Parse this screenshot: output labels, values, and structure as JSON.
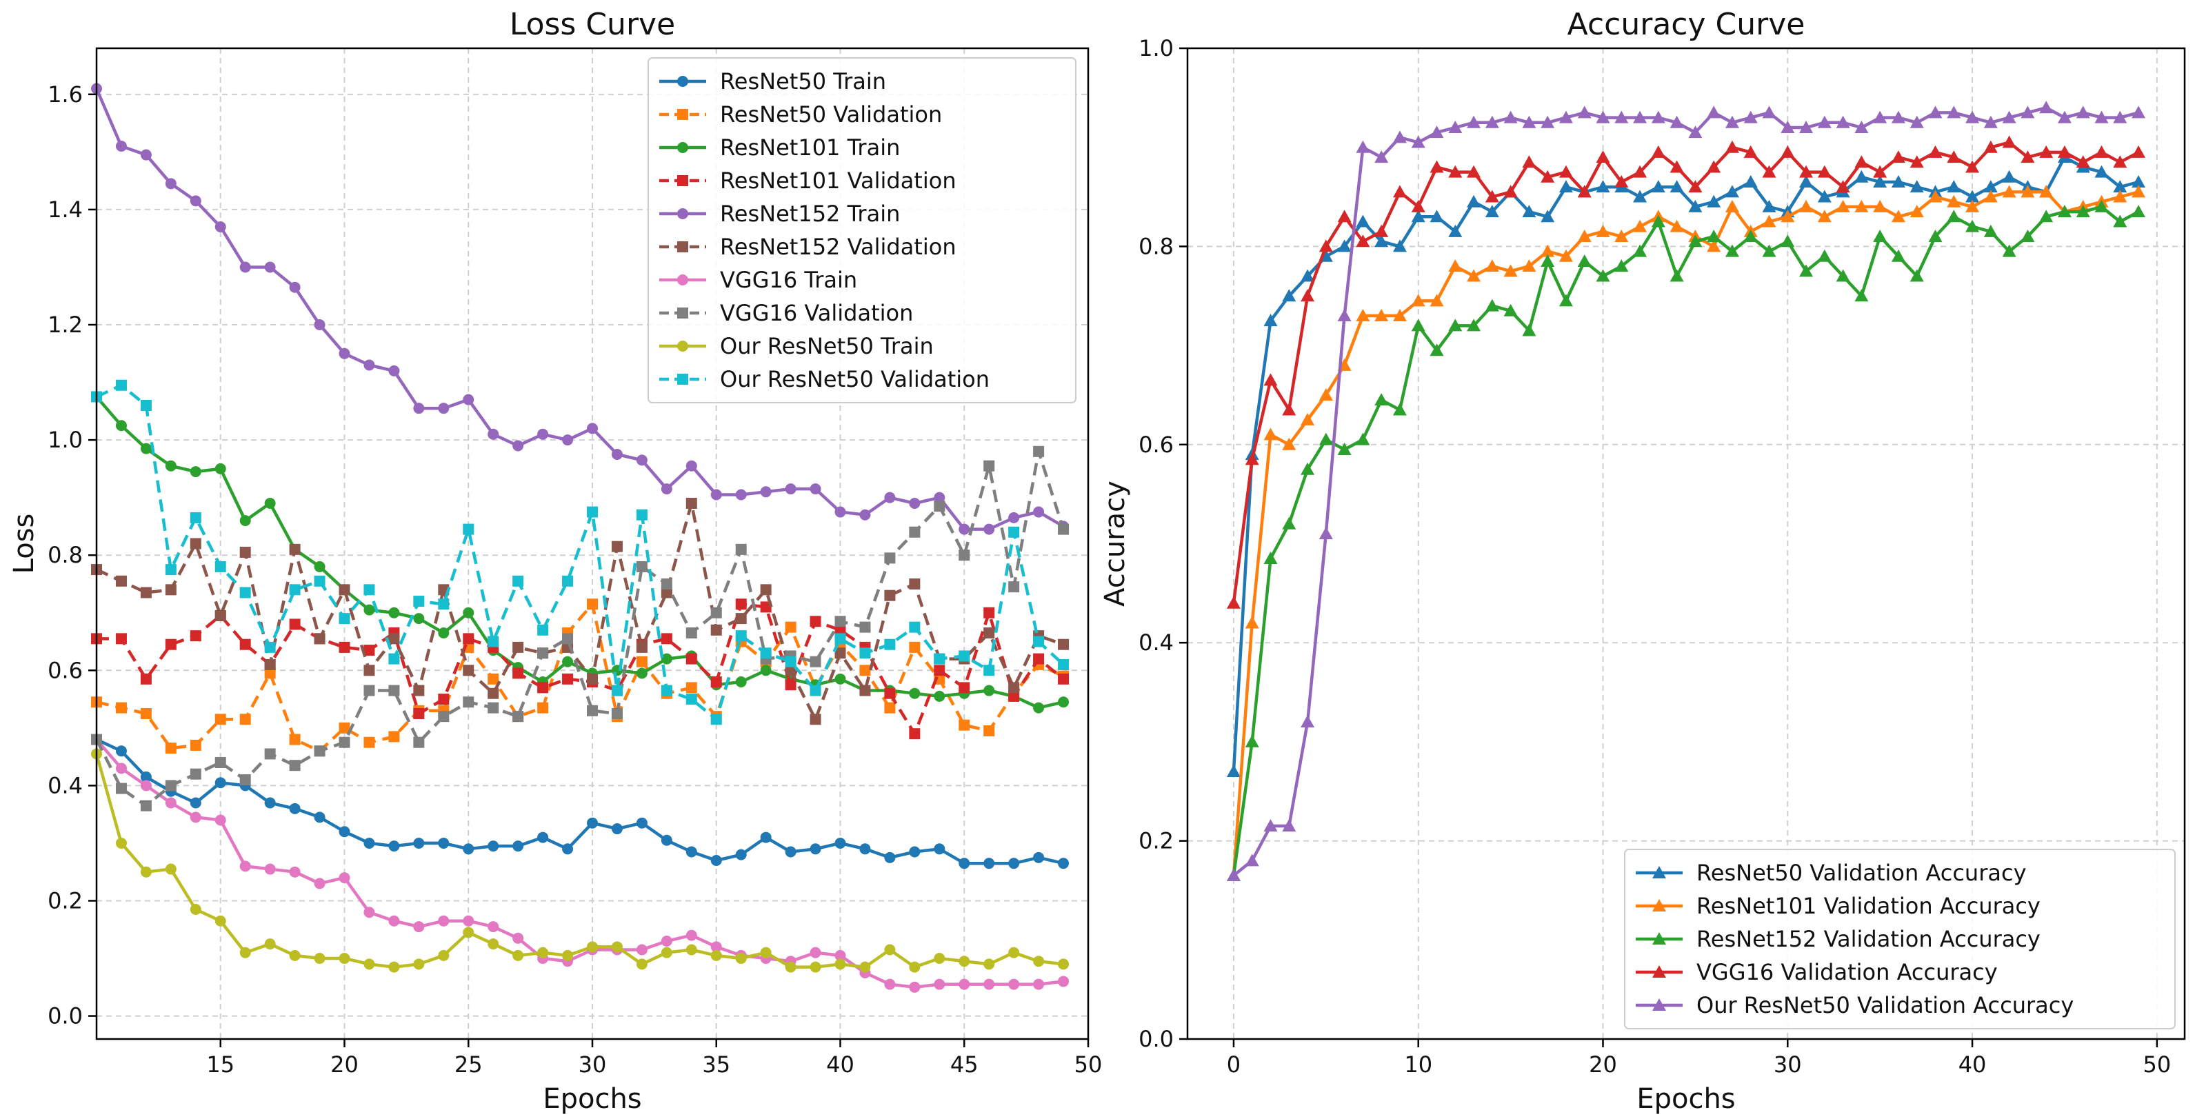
{
  "chart_data": [
    {
      "type": "line",
      "title": "Loss Curve",
      "xlabel": "Epochs",
      "ylabel": "Loss",
      "xlim": [
        10,
        50
      ],
      "ylim": [
        -0.04,
        1.68
      ],
      "xticks": [
        15,
        20,
        25,
        30,
        35,
        40,
        45,
        50
      ],
      "yticks": [
        0.0,
        0.2,
        0.4,
        0.6,
        0.8,
        1.0,
        1.2,
        1.4,
        1.6
      ],
      "ytick_labels": [
        "0.0",
        "0.2",
        "0.4",
        "0.6",
        "0.8",
        "1.0",
        "1.2",
        "1.4",
        "1.6"
      ],
      "grid": true,
      "legend_position": "top-right",
      "x": [
        10,
        11,
        12,
        13,
        14,
        15,
        16,
        17,
        18,
        19,
        20,
        21,
        22,
        23,
        24,
        25,
        26,
        27,
        28,
        29,
        30,
        31,
        32,
        33,
        34,
        35,
        36,
        37,
        38,
        39,
        40,
        41,
        42,
        43,
        44,
        45,
        46,
        47,
        48,
        49
      ],
      "series": [
        {
          "name": "ResNet50 Train",
          "color": "#1f77b4",
          "dash": false,
          "marker": "circle",
          "values": [
            0.48,
            0.46,
            0.415,
            0.39,
            0.37,
            0.405,
            0.4,
            0.37,
            0.36,
            0.345,
            0.32,
            0.3,
            0.295,
            0.3,
            0.3,
            0.29,
            0.295,
            0.295,
            0.31,
            0.29,
            0.335,
            0.325,
            0.335,
            0.305,
            0.285,
            0.27,
            0.28,
            0.31,
            0.285,
            0.29,
            0.3,
            0.29,
            0.275,
            0.285,
            0.29,
            0.265,
            0.265,
            0.265,
            0.275,
            0.265
          ]
        },
        {
          "name": "ResNet50 Validation",
          "color": "#ff7f0e",
          "dash": true,
          "marker": "square",
          "values": [
            0.545,
            0.535,
            0.525,
            0.465,
            0.47,
            0.515,
            0.515,
            0.595,
            0.48,
            0.46,
            0.5,
            0.475,
            0.485,
            0.53,
            0.53,
            0.64,
            0.585,
            0.52,
            0.535,
            0.665,
            0.715,
            0.52,
            0.615,
            0.56,
            0.57,
            0.52,
            0.65,
            0.615,
            0.675,
            0.57,
            0.645,
            0.6,
            0.535,
            0.64,
            0.585,
            0.505,
            0.495,
            0.56,
            0.61,
            0.59
          ]
        },
        {
          "name": "ResNet101 Train",
          "color": "#2ca02c",
          "dash": false,
          "marker": "circle",
          "values": [
            1.075,
            1.025,
            0.985,
            0.955,
            0.945,
            0.95,
            0.86,
            0.89,
            0.81,
            0.78,
            0.74,
            0.705,
            0.7,
            0.69,
            0.665,
            0.7,
            0.635,
            0.605,
            0.58,
            0.615,
            0.595,
            0.6,
            0.595,
            0.62,
            0.625,
            0.575,
            0.58,
            0.6,
            0.585,
            0.575,
            0.585,
            0.565,
            0.565,
            0.56,
            0.555,
            0.56,
            0.565,
            0.555,
            0.535,
            0.545
          ]
        },
        {
          "name": "ResNet101 Validation",
          "color": "#d62728",
          "dash": true,
          "marker": "square",
          "values": [
            0.655,
            0.655,
            0.585,
            0.645,
            0.66,
            0.695,
            0.645,
            0.61,
            0.68,
            0.655,
            0.64,
            0.635,
            0.665,
            0.525,
            0.55,
            0.655,
            0.64,
            0.595,
            0.57,
            0.585,
            0.58,
            0.565,
            0.645,
            0.655,
            0.62,
            0.58,
            0.715,
            0.71,
            0.575,
            0.685,
            0.67,
            0.64,
            0.56,
            0.49,
            0.6,
            0.57,
            0.7,
            0.555,
            0.62,
            0.585
          ]
        },
        {
          "name": "ResNet152 Train",
          "color": "#9467bd",
          "dash": false,
          "marker": "circle",
          "values": [
            1.61,
            1.51,
            1.495,
            1.445,
            1.415,
            1.37,
            1.3,
            1.3,
            1.265,
            1.2,
            1.15,
            1.13,
            1.12,
            1.055,
            1.055,
            1.07,
            1.01,
            0.99,
            1.01,
            1.0,
            1.02,
            0.975,
            0.965,
            0.915,
            0.955,
            0.905,
            0.905,
            0.91,
            0.915,
            0.915,
            0.875,
            0.87,
            0.9,
            0.89,
            0.9,
            0.845,
            0.845,
            0.865,
            0.875,
            0.85
          ]
        },
        {
          "name": "ResNet152 Validation",
          "color": "#8c564b",
          "dash": true,
          "marker": "square",
          "values": [
            0.775,
            0.755,
            0.735,
            0.74,
            0.82,
            0.695,
            0.805,
            0.61,
            0.81,
            0.655,
            0.74,
            0.6,
            0.655,
            0.565,
            0.74,
            0.6,
            0.56,
            0.64,
            0.63,
            0.64,
            0.585,
            0.815,
            0.64,
            0.735,
            0.89,
            0.67,
            0.69,
            0.74,
            0.6,
            0.515,
            0.63,
            0.565,
            0.73,
            0.75,
            0.62,
            0.62,
            0.665,
            0.57,
            0.66,
            0.645
          ]
        },
        {
          "name": "VGG16 Train",
          "color": "#e377c2",
          "dash": false,
          "marker": "circle",
          "values": [
            0.48,
            0.43,
            0.4,
            0.37,
            0.345,
            0.34,
            0.26,
            0.255,
            0.25,
            0.23,
            0.24,
            0.18,
            0.165,
            0.155,
            0.165,
            0.165,
            0.155,
            0.135,
            0.1,
            0.095,
            0.115,
            0.115,
            0.115,
            0.13,
            0.14,
            0.12,
            0.105,
            0.1,
            0.095,
            0.11,
            0.105,
            0.075,
            0.055,
            0.05,
            0.055,
            0.055,
            0.055,
            0.055,
            0.055,
            0.06
          ]
        },
        {
          "name": "VGG16 Validation",
          "color": "#7f7f7f",
          "dash": true,
          "marker": "square",
          "values": [
            0.48,
            0.395,
            0.365,
            0.4,
            0.42,
            0.44,
            0.41,
            0.455,
            0.435,
            0.46,
            0.475,
            0.565,
            0.565,
            0.475,
            0.52,
            0.545,
            0.535,
            0.52,
            0.63,
            0.655,
            0.53,
            0.525,
            0.78,
            0.75,
            0.665,
            0.7,
            0.81,
            0.62,
            0.625,
            0.615,
            0.685,
            0.675,
            0.795,
            0.84,
            0.885,
            0.8,
            0.955,
            0.745,
            0.98,
            0.845
          ]
        },
        {
          "name": "Our ResNet50 Train",
          "color": "#bcbd22",
          "dash": false,
          "marker": "circle",
          "values": [
            0.455,
            0.3,
            0.25,
            0.255,
            0.185,
            0.165,
            0.11,
            0.125,
            0.105,
            0.1,
            0.1,
            0.09,
            0.085,
            0.09,
            0.105,
            0.145,
            0.125,
            0.105,
            0.11,
            0.105,
            0.12,
            0.12,
            0.09,
            0.11,
            0.115,
            0.105,
            0.1,
            0.11,
            0.085,
            0.085,
            0.09,
            0.085,
            0.115,
            0.085,
            0.1,
            0.095,
            0.09,
            0.11,
            0.095,
            0.09
          ]
        },
        {
          "name": "Our ResNet50 Validation",
          "color": "#17becf",
          "dash": true,
          "marker": "square",
          "values": [
            1.075,
            1.095,
            1.06,
            0.775,
            0.865,
            0.78,
            0.735,
            0.64,
            0.74,
            0.755,
            0.69,
            0.74,
            0.62,
            0.72,
            0.715,
            0.845,
            0.65,
            0.755,
            0.67,
            0.755,
            0.875,
            0.565,
            0.87,
            0.565,
            0.55,
            0.515,
            0.66,
            0.63,
            0.615,
            0.565,
            0.655,
            0.63,
            0.645,
            0.675,
            0.62,
            0.625,
            0.6,
            0.84,
            0.65,
            0.61
          ]
        }
      ]
    },
    {
      "type": "line",
      "title": "Accuracy Curve",
      "xlabel": "Epochs",
      "ylabel": "Accuracy",
      "xlim": [
        -2.5,
        51.5
      ],
      "ylim": [
        0.0,
        1.0
      ],
      "xticks": [
        0,
        10,
        20,
        30,
        40,
        50
      ],
      "yticks": [
        0.0,
        0.2,
        0.4,
        0.6,
        0.8,
        1.0
      ],
      "ytick_labels": [
        "0.0",
        "0.2",
        "0.4",
        "0.6",
        "0.8",
        "1.0"
      ],
      "grid": true,
      "legend_position": "bottom-right",
      "x": [
        0,
        1,
        2,
        3,
        4,
        5,
        6,
        7,
        8,
        9,
        10,
        11,
        12,
        13,
        14,
        15,
        16,
        17,
        18,
        19,
        20,
        21,
        22,
        23,
        24,
        25,
        26,
        27,
        28,
        29,
        30,
        31,
        32,
        33,
        34,
        35,
        36,
        37,
        38,
        39,
        40,
        41,
        42,
        43,
        44,
        45,
        46,
        47,
        48,
        49
      ],
      "series": [
        {
          "name": "ResNet50 Validation Accuracy",
          "color": "#1f77b4",
          "dash": false,
          "marker": "triangle",
          "values": [
            0.27,
            0.59,
            0.725,
            0.75,
            0.77,
            0.79,
            0.8,
            0.825,
            0.805,
            0.8,
            0.83,
            0.83,
            0.815,
            0.845,
            0.835,
            0.855,
            0.835,
            0.83,
            0.86,
            0.855,
            0.86,
            0.86,
            0.85,
            0.86,
            0.86,
            0.84,
            0.845,
            0.855,
            0.865,
            0.84,
            0.835,
            0.865,
            0.85,
            0.855,
            0.87,
            0.865,
            0.865,
            0.86,
            0.855,
            0.86,
            0.85,
            0.86,
            0.87,
            0.86,
            0.855,
            0.89,
            0.88,
            0.875,
            0.86,
            0.865
          ]
        },
        {
          "name": "ResNet101 Validation Accuracy",
          "color": "#ff7f0e",
          "dash": false,
          "marker": "triangle",
          "values": [
            0.165,
            0.42,
            0.61,
            0.6,
            0.625,
            0.65,
            0.68,
            0.73,
            0.73,
            0.73,
            0.745,
            0.745,
            0.78,
            0.77,
            0.78,
            0.775,
            0.78,
            0.795,
            0.79,
            0.81,
            0.815,
            0.81,
            0.82,
            0.83,
            0.82,
            0.81,
            0.8,
            0.84,
            0.815,
            0.825,
            0.83,
            0.84,
            0.83,
            0.84,
            0.84,
            0.84,
            0.83,
            0.835,
            0.85,
            0.845,
            0.84,
            0.85,
            0.855,
            0.855,
            0.855,
            0.835,
            0.84,
            0.845,
            0.85,
            0.855
          ]
        },
        {
          "name": "ResNet152 Validation Accuracy",
          "color": "#2ca02c",
          "dash": false,
          "marker": "triangle",
          "values": [
            0.165,
            0.3,
            0.485,
            0.52,
            0.575,
            0.605,
            0.595,
            0.605,
            0.645,
            0.635,
            0.72,
            0.695,
            0.72,
            0.72,
            0.74,
            0.735,
            0.715,
            0.785,
            0.745,
            0.785,
            0.77,
            0.78,
            0.795,
            0.825,
            0.77,
            0.805,
            0.81,
            0.795,
            0.81,
            0.795,
            0.805,
            0.775,
            0.79,
            0.77,
            0.75,
            0.81,
            0.79,
            0.77,
            0.81,
            0.83,
            0.82,
            0.815,
            0.795,
            0.81,
            0.83,
            0.835,
            0.835,
            0.84,
            0.825,
            0.835
          ]
        },
        {
          "name": "VGG16 Validation Accuracy",
          "color": "#d62728",
          "dash": false,
          "marker": "triangle",
          "values": [
            0.44,
            0.585,
            0.665,
            0.635,
            0.75,
            0.8,
            0.83,
            0.805,
            0.815,
            0.855,
            0.84,
            0.88,
            0.875,
            0.875,
            0.85,
            0.855,
            0.885,
            0.87,
            0.875,
            0.855,
            0.89,
            0.865,
            0.875,
            0.895,
            0.88,
            0.86,
            0.88,
            0.9,
            0.895,
            0.875,
            0.895,
            0.875,
            0.875,
            0.86,
            0.885,
            0.875,
            0.89,
            0.885,
            0.895,
            0.89,
            0.88,
            0.9,
            0.905,
            0.89,
            0.895,
            0.895,
            0.885,
            0.895,
            0.885,
            0.895
          ]
        },
        {
          "name": "Our ResNet50 Validation Accuracy",
          "color": "#9467bd",
          "dash": false,
          "marker": "triangle",
          "values": [
            0.165,
            0.18,
            0.215,
            0.215,
            0.32,
            0.51,
            0.73,
            0.9,
            0.89,
            0.91,
            0.905,
            0.915,
            0.92,
            0.925,
            0.925,
            0.93,
            0.925,
            0.925,
            0.93,
            0.935,
            0.93,
            0.93,
            0.93,
            0.93,
            0.925,
            0.915,
            0.935,
            0.925,
            0.93,
            0.935,
            0.92,
            0.92,
            0.925,
            0.925,
            0.92,
            0.93,
            0.93,
            0.925,
            0.935,
            0.935,
            0.93,
            0.925,
            0.93,
            0.935,
            0.94,
            0.93,
            0.935,
            0.93,
            0.93,
            0.935
          ]
        }
      ]
    }
  ]
}
